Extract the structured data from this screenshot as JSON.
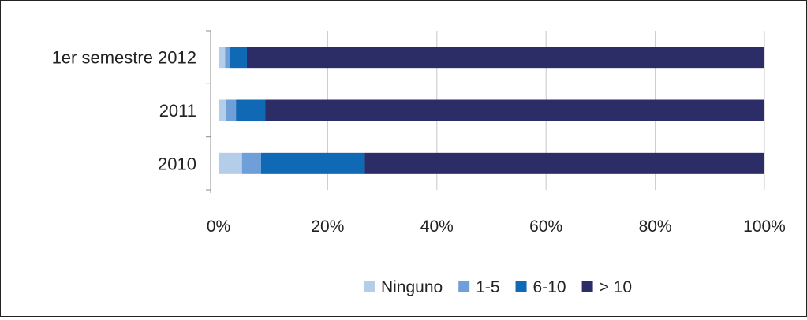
{
  "chart_data": {
    "type": "bar",
    "orientation": "horizontal",
    "stacked": "percent",
    "categories": [
      "1er semestre 2012",
      "2011",
      "2010"
    ],
    "series": [
      {
        "name": "Ninguno",
        "values": [
          1.2,
          1.4,
          4.3
        ],
        "color": "#b4cde8"
      },
      {
        "name": "1-5",
        "values": [
          0.8,
          1.8,
          3.5
        ],
        "color": "#6f9fd8"
      },
      {
        "name": "6-10",
        "values": [
          3.2,
          5.4,
          19.0
        ],
        "color": "#0f69b4"
      },
      {
        "name": "> 10",
        "values": [
          94.8,
          91.4,
          73.2
        ],
        "color": "#2c2c67"
      }
    ],
    "xlim": [
      0,
      100
    ],
    "x_ticks": [
      "0%",
      "20%",
      "40%",
      "60%",
      "80%",
      "100%"
    ],
    "grid": "vertical",
    "legend_position": "bottom"
  }
}
